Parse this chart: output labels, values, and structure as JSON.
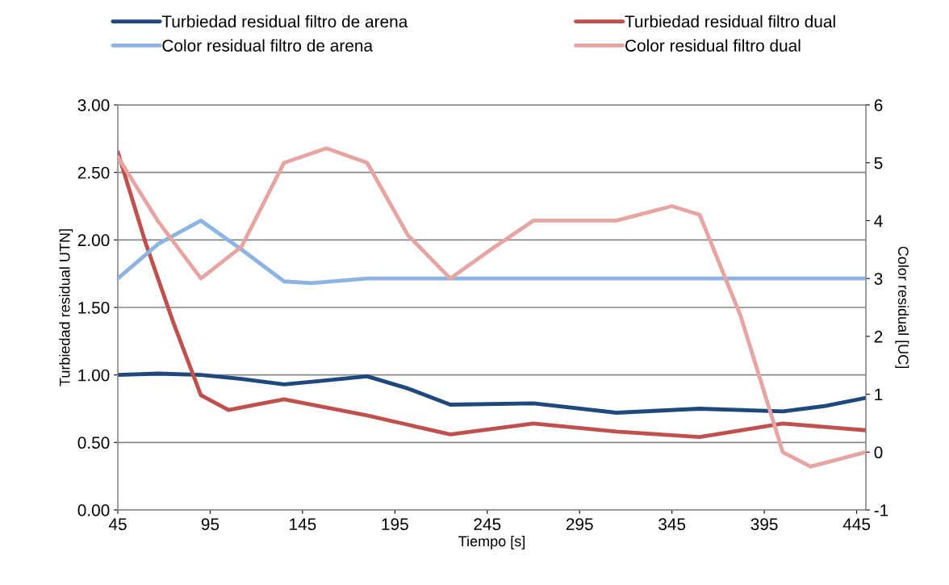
{
  "chart_data": {
    "type": "line",
    "xlabel": "Tiempo [s]",
    "ylabel": "Turbiedad residual UTN]",
    "y2label": "Color residual [UC]",
    "series": [
      {
        "name": "Turbiedad residual filtro de arena",
        "color": "#1f497d",
        "x": [
          45,
          67,
          90,
          112,
          135,
          158,
          180,
          202,
          225,
          270,
          315,
          360,
          405,
          428,
          450
        ],
        "values": [
          1.0,
          1.01,
          1.0,
          0.97,
          0.93,
          0.96,
          0.99,
          0.9,
          0.78,
          0.79,
          0.72,
          0.75,
          0.73,
          0.77,
          0.83
        ]
      },
      {
        "name": "Turbiedad residual filtro dual",
        "color": "#c0504d",
        "x": [
          45,
          60,
          75,
          90,
          105,
          120,
          135,
          180,
          225,
          270,
          315,
          360,
          405,
          450
        ],
        "values": [
          2.65,
          1.98,
          1.39,
          0.85,
          0.74,
          0.78,
          0.82,
          0.7,
          0.56,
          0.64,
          0.58,
          0.54,
          0.64,
          0.59
        ]
      },
      {
        "name": "Color residual filtro de arena",
        "color": "#8db3e2",
        "axis": "y2",
        "x": [
          45,
          67,
          90,
          112,
          135,
          150,
          180,
          450
        ],
        "values": [
          3,
          3.6,
          4,
          3.5,
          2.95,
          2.92,
          3,
          3
        ]
      },
      {
        "name": "Color residual filtro dual",
        "color": "#e6a5a3",
        "axis": "y2",
        "x": [
          45,
          67,
          90,
          112,
          135,
          158,
          180,
          202,
          225,
          247,
          270,
          315,
          345,
          360,
          382,
          405,
          420,
          450
        ],
        "values": [
          5.1,
          3.98,
          3,
          3.55,
          5,
          5.25,
          5.0,
          3.75,
          3,
          3.5,
          4,
          4,
          4.25,
          4.1,
          2.37,
          0,
          -0.25,
          0
        ]
      }
    ],
    "xlim": [
      45,
      450
    ],
    "xticks": [
      45,
      95,
      145,
      195,
      245,
      295,
      345,
      395,
      445
    ],
    "ylim": [
      0,
      3
    ],
    "yticks": [
      {
        "value": 0,
        "label": "0.00"
      },
      {
        "value": 0.5,
        "label": "0.50"
      },
      {
        "value": 1,
        "label": "1.00"
      },
      {
        "value": 1.5,
        "label": "1.50"
      },
      {
        "value": 2,
        "label": "2.00"
      },
      {
        "value": 2.5,
        "label": "2.50"
      },
      {
        "value": 3,
        "label": "3.00"
      }
    ],
    "y2lim": [
      -1,
      6
    ],
    "y2ticks": [
      -1,
      0,
      1,
      2,
      3,
      4,
      5,
      6
    ],
    "grid": "y",
    "legend": "top",
    "marker": "none",
    "line_style": "solid"
  }
}
